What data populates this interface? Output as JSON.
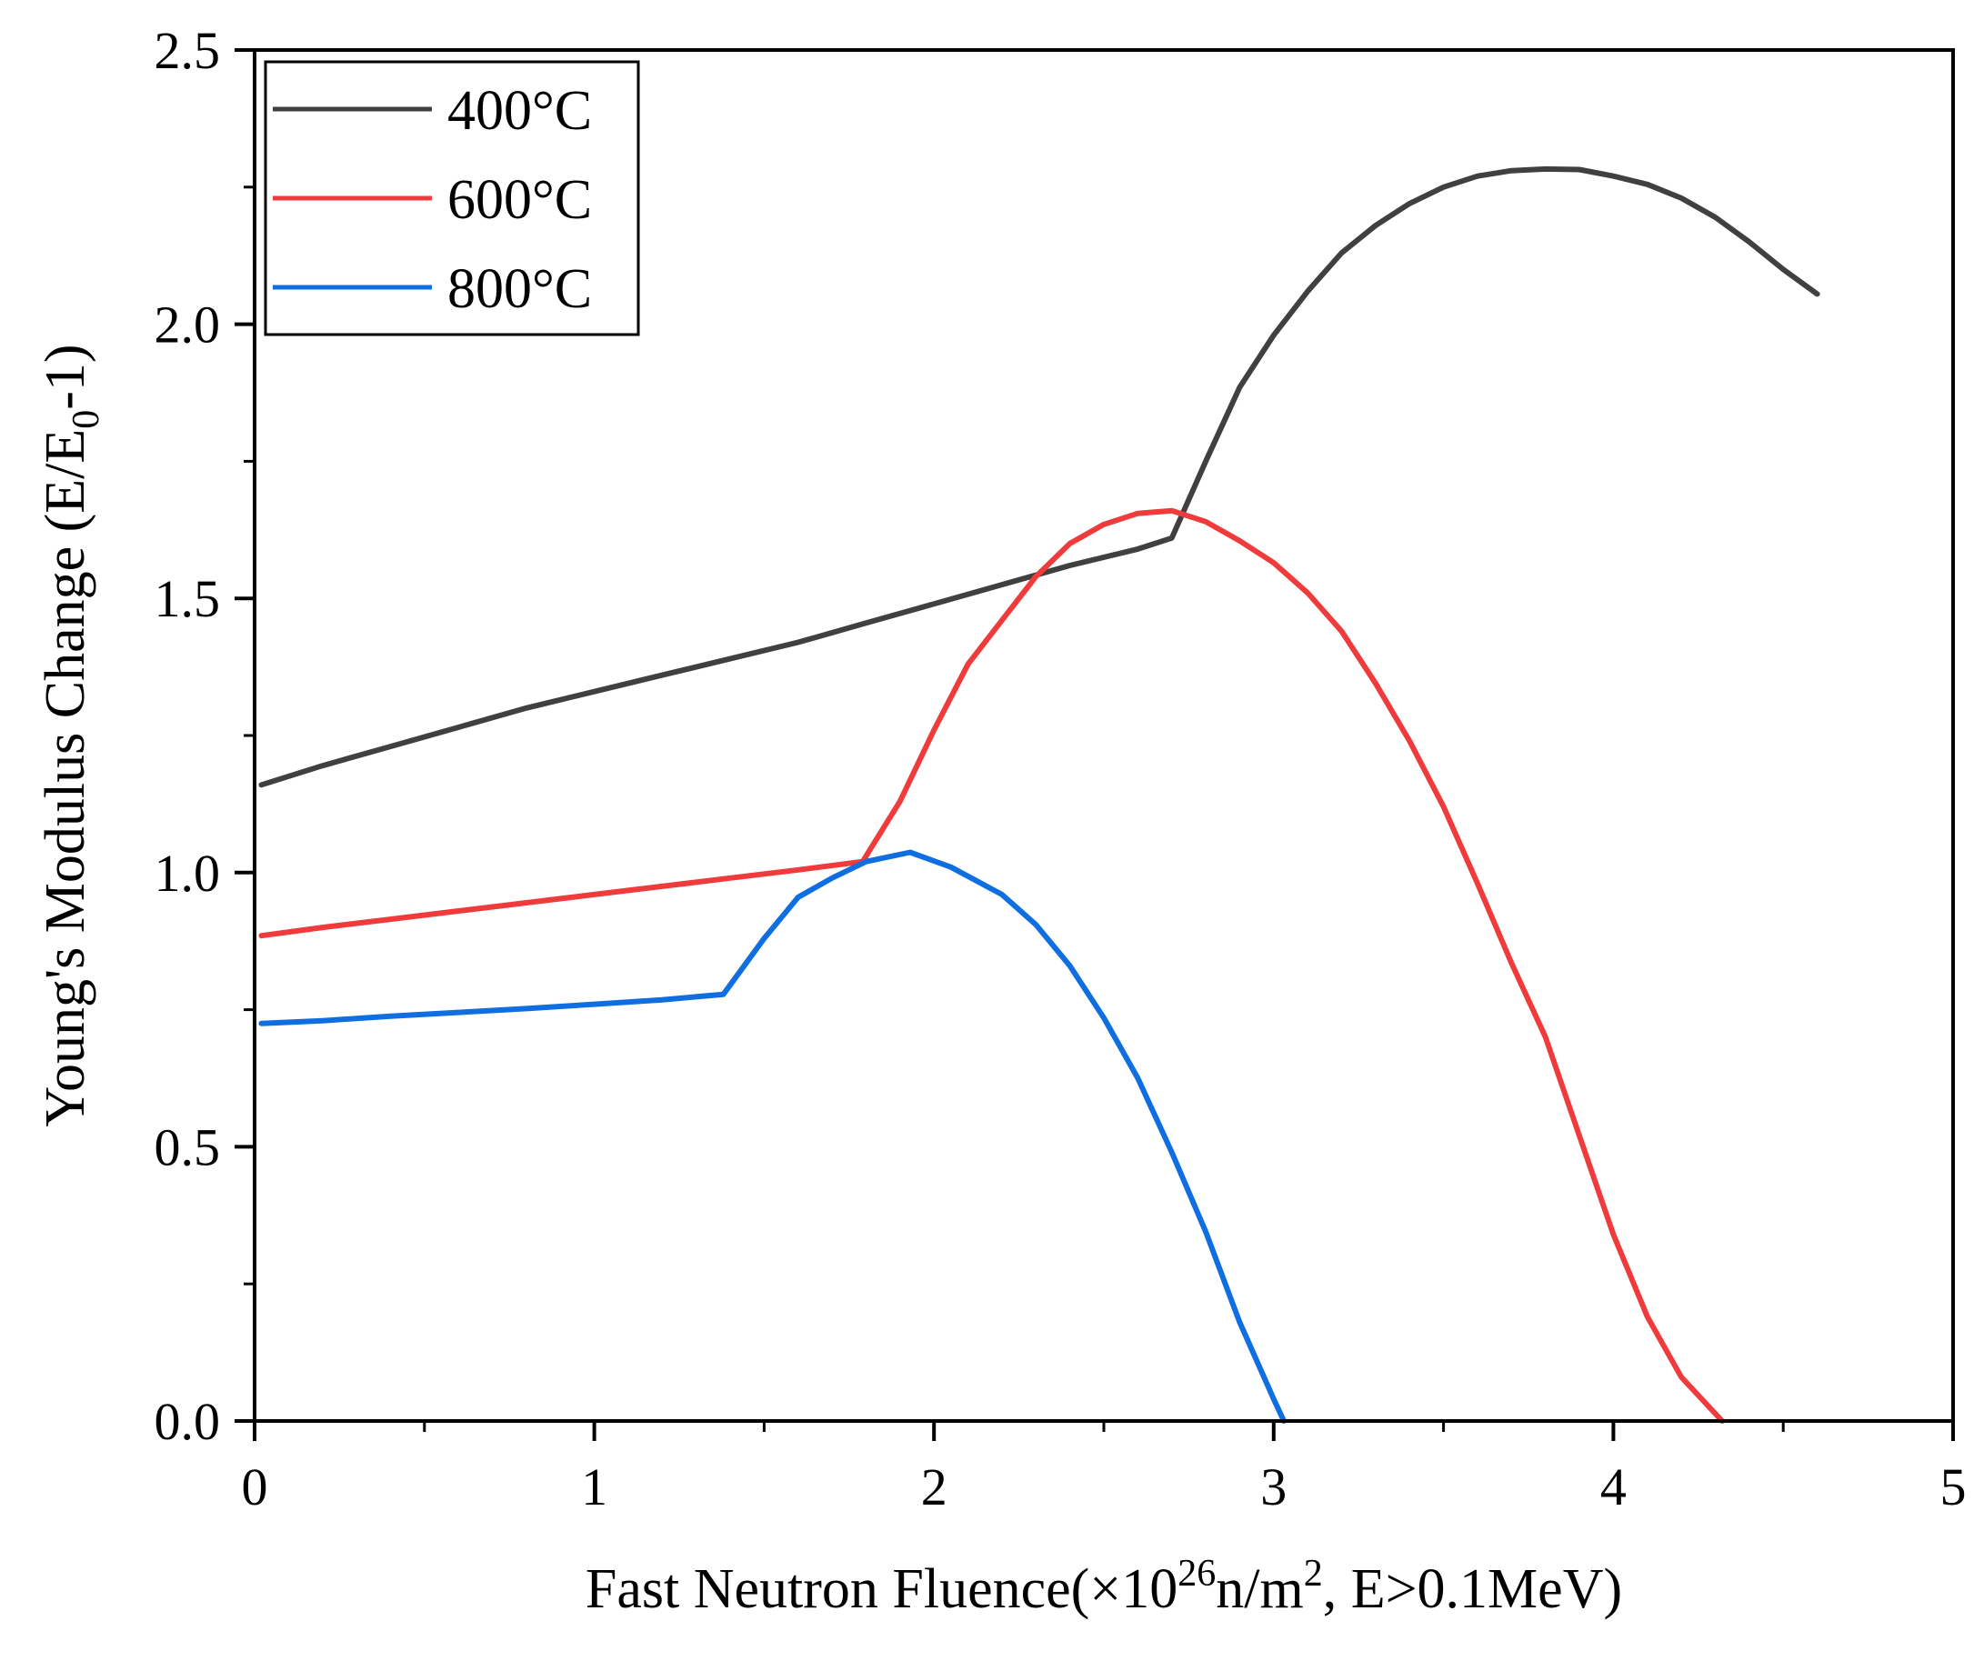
{
  "chart_data": {
    "type": "line",
    "title": "",
    "xlabel": {
      "prefix": "Fast Neutron Fluence(×10",
      "sup1": "26",
      "mid": "n/m",
      "sup2": "2",
      "suffix": ", E>0.1MeV)"
    },
    "ylabel": {
      "prefix": "Young's Modulus Change (E/E",
      "sub": "0",
      "suffix": "-1)"
    },
    "xlim": [
      0,
      5
    ],
    "ylim": [
      0,
      2.5
    ],
    "x_ticks": [
      0,
      1,
      2,
      3,
      4,
      5
    ],
    "x_tick_labels": [
      "0",
      "1",
      "2",
      "3",
      "4",
      "5"
    ],
    "y_ticks": [
      0,
      0.5,
      1.0,
      1.5,
      2.0,
      2.5
    ],
    "y_tick_labels": [
      "0.0",
      "0.5",
      "1.0",
      "1.5",
      "2.0",
      "2.5"
    ],
    "grid": false,
    "legend_position": "top-left",
    "series": [
      {
        "name": "400°C",
        "color": "#404040",
        "x": [
          0.02,
          0.2,
          0.4,
          0.6,
          0.8,
          1.0,
          1.2,
          1.4,
          1.6,
          1.8,
          2.0,
          2.2,
          2.4,
          2.6,
          2.7,
          2.8,
          2.9,
          3.0,
          3.1,
          3.2,
          3.3,
          3.4,
          3.5,
          3.6,
          3.7,
          3.8,
          3.9,
          4.0,
          4.1,
          4.2,
          4.3,
          4.4,
          4.5,
          4.6
        ],
        "values": [
          1.16,
          1.195,
          1.23,
          1.265,
          1.3,
          1.33,
          1.36,
          1.39,
          1.42,
          1.455,
          1.49,
          1.525,
          1.56,
          1.59,
          1.61,
          1.75,
          1.885,
          1.98,
          2.06,
          2.13,
          2.18,
          2.22,
          2.25,
          2.27,
          2.28,
          2.283,
          2.282,
          2.27,
          2.255,
          2.23,
          2.195,
          2.15,
          2.1,
          2.055
        ]
      },
      {
        "name": "600°C",
        "color": "#ef3b3b",
        "x": [
          0.02,
          0.2,
          0.4,
          0.6,
          0.8,
          1.0,
          1.2,
          1.4,
          1.6,
          1.79,
          1.9,
          2.0,
          2.1,
          2.2,
          2.3,
          2.4,
          2.5,
          2.6,
          2.7,
          2.8,
          2.9,
          3.0,
          3.1,
          3.2,
          3.3,
          3.4,
          3.5,
          3.6,
          3.7,
          3.8,
          3.9,
          4.0,
          4.1,
          4.2,
          4.32
        ],
        "values": [
          0.885,
          0.9,
          0.915,
          0.93,
          0.945,
          0.96,
          0.975,
          0.99,
          1.005,
          1.02,
          1.13,
          1.26,
          1.38,
          1.46,
          1.54,
          1.6,
          1.635,
          1.655,
          1.66,
          1.64,
          1.605,
          1.565,
          1.51,
          1.44,
          1.345,
          1.24,
          1.12,
          0.98,
          0.835,
          0.7,
          0.52,
          0.34,
          0.19,
          0.08,
          0.0
        ]
      },
      {
        "name": "800°C",
        "color": "#0f6ee0",
        "x": [
          0.02,
          0.2,
          0.4,
          0.6,
          0.8,
          1.0,
          1.2,
          1.38,
          1.5,
          1.6,
          1.7,
          1.8,
          1.93,
          2.05,
          2.2,
          2.3,
          2.4,
          2.5,
          2.6,
          2.7,
          2.8,
          2.9,
          2.95,
          3.0,
          3.03
        ],
        "values": [
          0.725,
          0.73,
          0.738,
          0.745,
          0.752,
          0.76,
          0.768,
          0.778,
          0.88,
          0.955,
          0.99,
          1.02,
          1.037,
          1.01,
          0.96,
          0.905,
          0.83,
          0.735,
          0.625,
          0.49,
          0.345,
          0.18,
          0.11,
          0.04,
          0.0
        ]
      }
    ]
  }
}
